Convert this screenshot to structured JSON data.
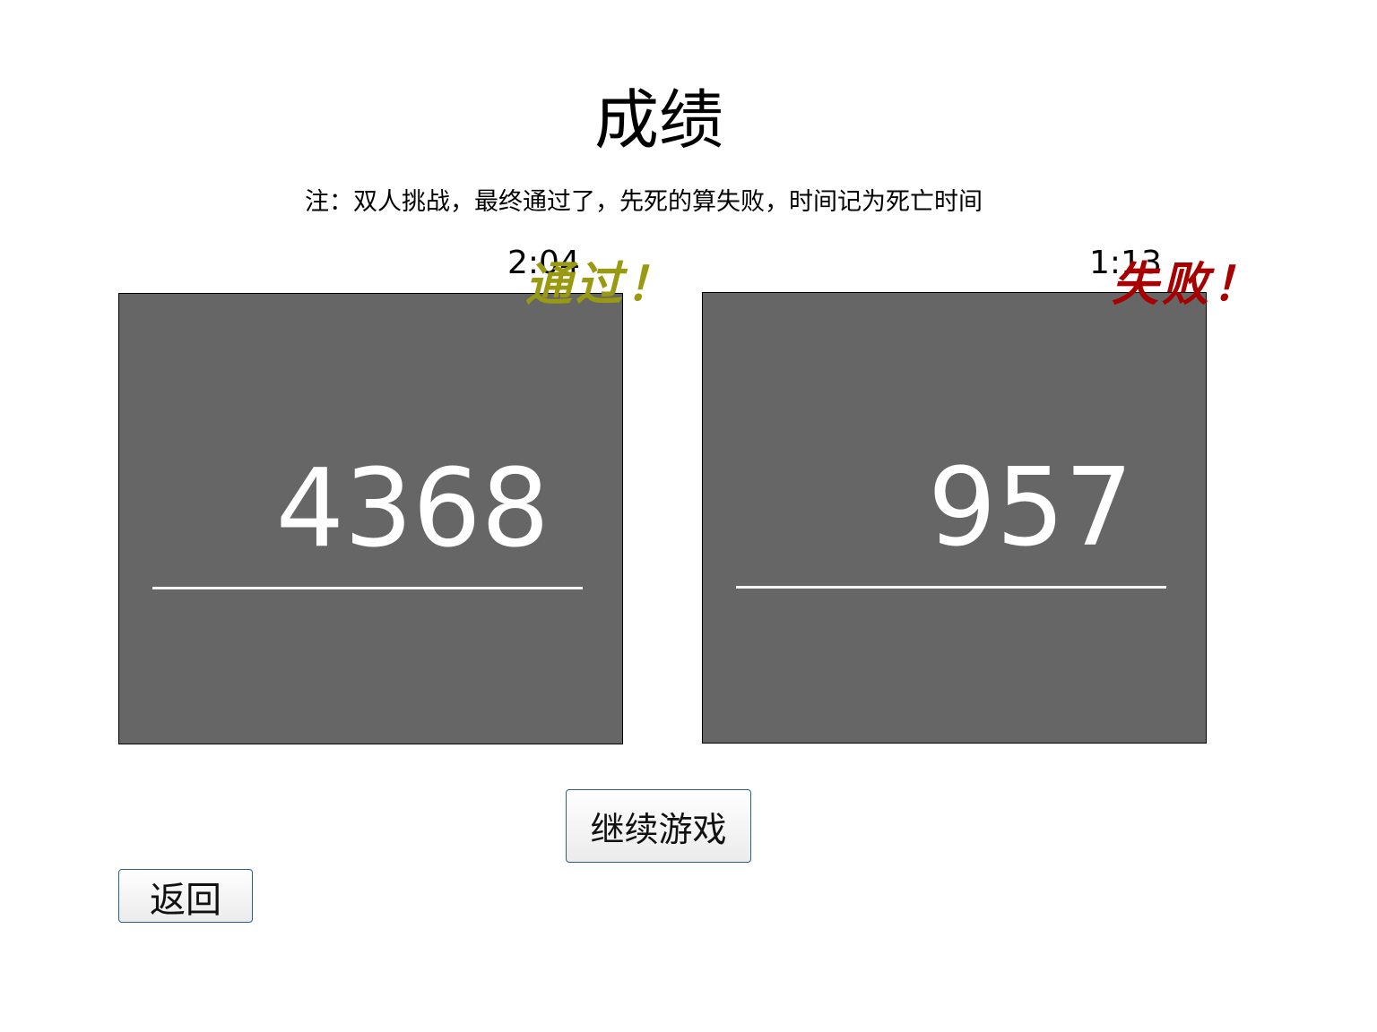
{
  "page": {
    "title": "成绩",
    "note": "注：双人挑战，最终通过了，先死的算失败，时间记为死亡时间"
  },
  "players": [
    {
      "time": "2:04",
      "score": "4368",
      "result": "通过！",
      "result_color": "#9a9a12"
    },
    {
      "time": "1:13",
      "score": "957",
      "result": "失败！",
      "result_color": "#a80000"
    }
  ],
  "buttons": {
    "continue_label": "继续游戏",
    "back_label": "返回"
  }
}
